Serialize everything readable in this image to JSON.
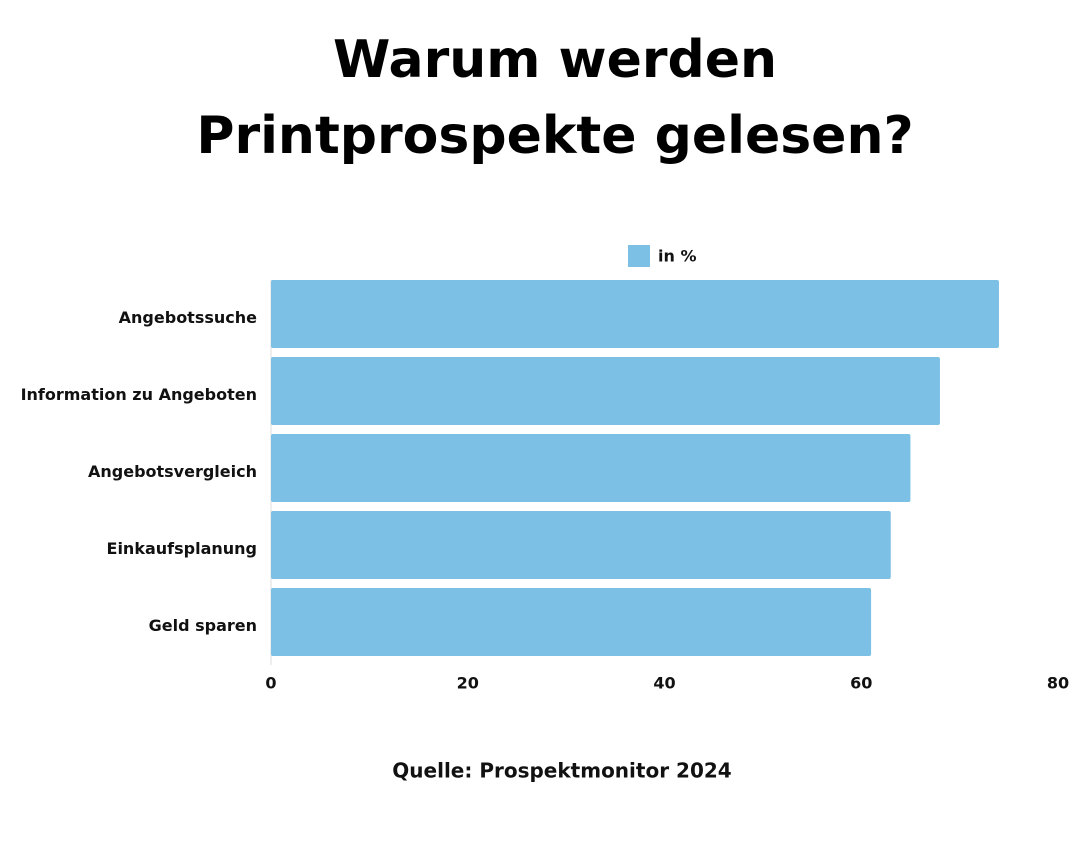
{
  "chart_data": {
    "type": "bar",
    "orientation": "horizontal",
    "title": "Warum werden Printprospekte gelesen?",
    "categories": [
      "Angebotssuche",
      "Information zu Angeboten",
      "Angebotsvergleich",
      "Einkaufsplanung",
      "Geld sparen"
    ],
    "series": [
      {
        "name": "in %",
        "color": "#7cc0e5",
        "values": [
          74,
          68,
          65,
          63,
          61
        ]
      }
    ],
    "xlim": [
      0,
      80
    ],
    "xticks": [
      0,
      20,
      40,
      60,
      80
    ],
    "legend": "top",
    "source": "Quelle: Prospektmonitor 2024"
  }
}
